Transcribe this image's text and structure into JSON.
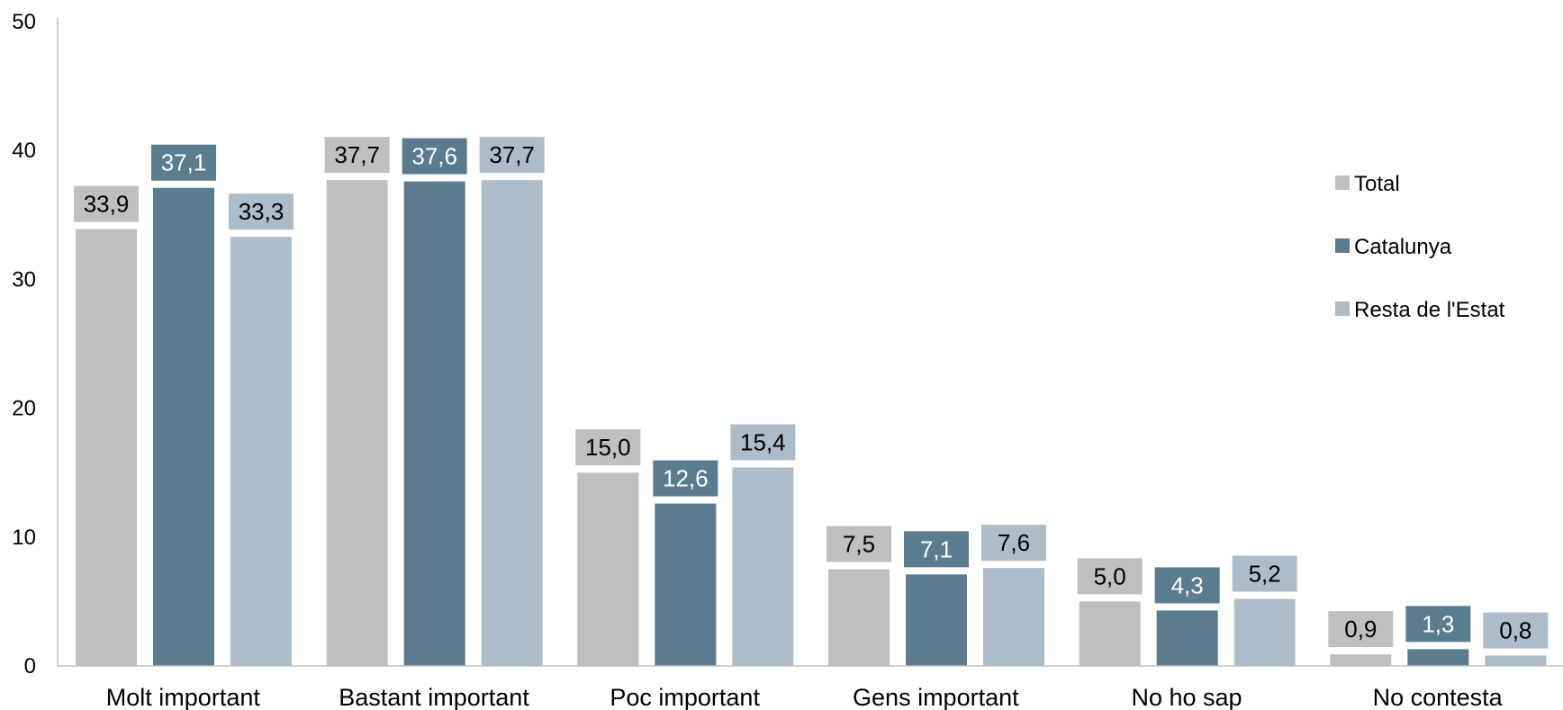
{
  "chart_data": {
    "type": "bar",
    "categories": [
      "Molt important",
      "Bastant important",
      "Poc important",
      "Gens important",
      "No ho sap",
      "No contesta"
    ],
    "series": [
      {
        "name": "Total",
        "values": [
          33.9,
          37.7,
          15.0,
          7.5,
          5.0,
          0.9
        ],
        "labels": [
          "33,9",
          "37,7",
          "15,0",
          "7,5",
          "5,0",
          "0,9"
        ]
      },
      {
        "name": "Catalunya",
        "values": [
          37.1,
          37.6,
          12.6,
          7.1,
          4.3,
          1.3
        ],
        "labels": [
          "37,1",
          "37,6",
          "12,6",
          "7,1",
          "4,3",
          "1,3"
        ]
      },
      {
        "name": "Resta de l'Estat",
        "values": [
          33.3,
          37.7,
          15.4,
          7.6,
          5.2,
          0.8
        ],
        "labels": [
          "33,3",
          "37,7",
          "15,4",
          "7,6",
          "5,2",
          "0,8"
        ]
      }
    ],
    "colors": [
      "#bfbfbf",
      "#5b7b8f",
      "#acbcc8"
    ],
    "label_text_colors": [
      "#000000",
      "#ffffff",
      "#000000"
    ],
    "ylim": [
      0,
      50
    ],
    "yticks": [
      "0",
      "10",
      "20",
      "30",
      "40",
      "50"
    ],
    "ytick_values": [
      0,
      10,
      20,
      30,
      40,
      50
    ],
    "grid": false,
    "legend": "right"
  }
}
